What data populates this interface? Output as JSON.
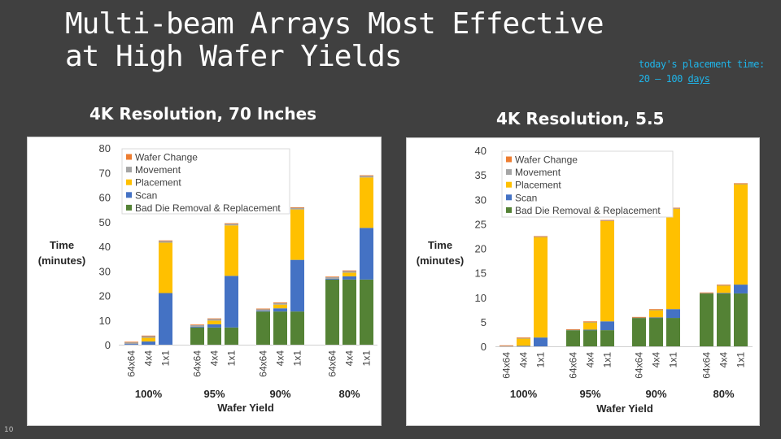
{
  "slide": {
    "title_line1": "Multi-beam Arrays Most Effective",
    "title_line2": "at High Wafer Yields",
    "note_line1": "today's placement time:",
    "note_line2_prefix": "20 – 100 ",
    "note_line2_link": "days",
    "page_number": "10"
  },
  "colors": {
    "Wafer Change": "#ed7d31",
    "Movement": "#a5a5a5",
    "Placement": "#ffc000",
    "Scan": "#4472c4",
    "Bad Die Removal & Replacement": "#548235"
  },
  "chart_data": [
    {
      "type": "bar",
      "stacked": true,
      "title": "4K Resolution, 70 Inches",
      "xlabel": "Wafer Yield",
      "ylabel_line1": "Time",
      "ylabel_line2": "(minutes)",
      "ylim": [
        0,
        80
      ],
      "yticks": [
        0,
        10,
        20,
        30,
        40,
        50,
        60,
        70,
        80
      ],
      "legend_position": "top-left",
      "legend_order": [
        "Wafer Change",
        "Movement",
        "Placement",
        "Scan",
        "Bad Die Removal & Replacement"
      ],
      "groups": [
        "100%",
        "95%",
        "90%",
        "80%"
      ],
      "categories": [
        "64x64",
        "4x4",
        "1x1"
      ],
      "series": [
        {
          "name": "Bad Die Removal & Replacement",
          "values": [
            [
              0,
              0,
              0
            ],
            [
              7,
              7,
              7
            ],
            [
              13.5,
              13.5,
              13.5
            ],
            [
              26.5,
              26.5,
              26.5
            ]
          ]
        },
        {
          "name": "Scan",
          "values": [
            [
              0.3,
              1.3,
              21
            ],
            [
              0.3,
              1.3,
              21
            ],
            [
              0.3,
              1.3,
              21
            ],
            [
              0.3,
              1.3,
              21
            ]
          ]
        },
        {
          "name": "Placement",
          "values": [
            [
              0,
              1.5,
              20.5
            ],
            [
              0,
              1.5,
              20.5
            ],
            [
              0,
              1.5,
              20.5
            ],
            [
              0,
              1.5,
              20.5
            ]
          ]
        },
        {
          "name": "Movement",
          "values": [
            [
              0.7,
              0.7,
              0.7
            ],
            [
              0.7,
              0.7,
              0.7
            ],
            [
              0.7,
              0.7,
              0.7
            ],
            [
              0.7,
              0.7,
              0.7
            ]
          ]
        },
        {
          "name": "Wafer Change",
          "values": [
            [
              0.2,
              0.2,
              0.2
            ],
            [
              0.2,
              0.2,
              0.2
            ],
            [
              0.2,
              0.2,
              0.2
            ],
            [
              0.2,
              0.2,
              0.2
            ]
          ]
        }
      ]
    },
    {
      "type": "bar",
      "stacked": true,
      "title": "4K Resolution, 5.5",
      "xlabel": "Wafer Yield",
      "ylabel_line1": "Time",
      "ylabel_line2": "(minutes)",
      "ylim": [
        0,
        40
      ],
      "yticks": [
        0,
        5,
        10,
        15,
        20,
        25,
        30,
        35,
        40
      ],
      "legend_position": "top-left",
      "legend_order": [
        "Wafer Change",
        "Movement",
        "Placement",
        "Scan",
        "Bad Die Removal & Replacement"
      ],
      "groups": [
        "100%",
        "95%",
        "90%",
        "80%"
      ],
      "categories": [
        "64x64",
        "4x4",
        "1x1"
      ],
      "series": [
        {
          "name": "Bad Die Removal & Replacement",
          "values": [
            [
              0,
              0,
              0
            ],
            [
              3.3,
              3.3,
              3.3
            ],
            [
              5.8,
              5.8,
              5.8
            ],
            [
              10.8,
              10.8,
              10.8
            ]
          ]
        },
        {
          "name": "Scan",
          "values": [
            [
              0,
              0.1,
              1.8
            ],
            [
              0,
              0.1,
              1.8
            ],
            [
              0,
              0.1,
              1.8
            ],
            [
              0,
              0.1,
              1.8
            ]
          ]
        },
        {
          "name": "Placement",
          "values": [
            [
              0,
              1.5,
              20.5
            ],
            [
              0,
              1.5,
              20.5
            ],
            [
              0,
              1.5,
              20.5
            ],
            [
              0,
              1.5,
              20.5
            ]
          ]
        },
        {
          "name": "Movement",
          "values": [
            [
              0.1,
              0.1,
              0.1
            ],
            [
              0.1,
              0.1,
              0.1
            ],
            [
              0.1,
              0.1,
              0.1
            ],
            [
              0.1,
              0.1,
              0.1
            ]
          ]
        },
        {
          "name": "Wafer Change",
          "values": [
            [
              0.1,
              0.1,
              0.1
            ],
            [
              0.1,
              0.1,
              0.1
            ],
            [
              0.1,
              0.1,
              0.1
            ],
            [
              0.1,
              0.1,
              0.1
            ]
          ]
        }
      ]
    }
  ]
}
